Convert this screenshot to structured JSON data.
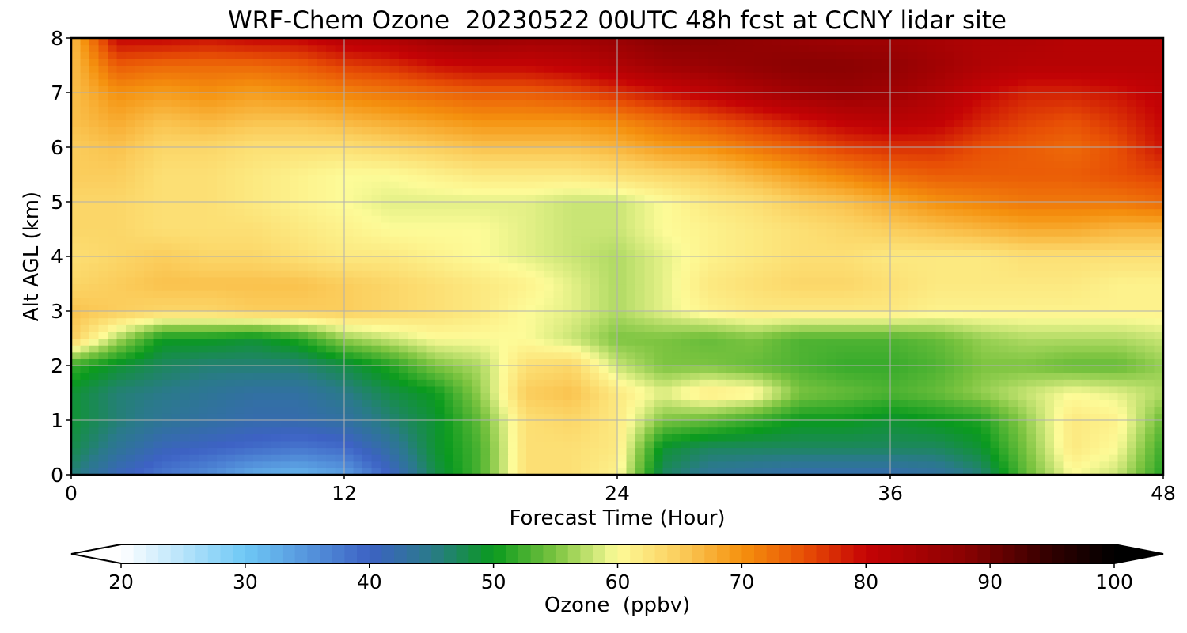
{
  "chart_data": {
    "type": "heatmap",
    "title": "WRF-Chem Ozone  20230522 00UTC 48h fcst at CCNY lidar site",
    "xlabel": "Forecast Time (Hour)",
    "ylabel": "Alt AGL (km)",
    "xlim": [
      0,
      48
    ],
    "ylim": [
      0,
      8
    ],
    "x_ticks": [
      "0",
      "12",
      "24",
      "36",
      "48"
    ],
    "y_ticks": [
      "0",
      "1",
      "2",
      "3",
      "4",
      "5",
      "6",
      "7",
      "8"
    ],
    "grid": true,
    "x": [
      0,
      2,
      4,
      6,
      8,
      10,
      12,
      14,
      16,
      18,
      20,
      22,
      24,
      26,
      28,
      30,
      32,
      34,
      36,
      38,
      40,
      42,
      44,
      46,
      48
    ],
    "y": [
      0,
      0.5,
      1,
      1.5,
      2,
      2.5,
      3,
      3.5,
      4,
      4.5,
      5,
      5.5,
      6,
      6.5,
      7,
      7.5,
      8
    ],
    "z_ozone_ppbv": [
      [
        46,
        41,
        38,
        36,
        33,
        32,
        34,
        40,
        48,
        53,
        63,
        63,
        61,
        47,
        44,
        43,
        42,
        42,
        42,
        43,
        46,
        54,
        60,
        58,
        51
      ],
      [
        48,
        44,
        41,
        40,
        39,
        38,
        39,
        43,
        49,
        53,
        63,
        63,
        62,
        49,
        47,
        47,
        47,
        47,
        47,
        47,
        49,
        55,
        62,
        60,
        52
      ],
      [
        49,
        46,
        44,
        43,
        42,
        42,
        43,
        46,
        49,
        54,
        63,
        64,
        62,
        55,
        54,
        52,
        50,
        50,
        49,
        50,
        51,
        56,
        62,
        61,
        54
      ],
      [
        49,
        46,
        45,
        44,
        43,
        43,
        45,
        48,
        50,
        56,
        65,
        66,
        62,
        59,
        62,
        61,
        55,
        54,
        53,
        54,
        56,
        58,
        60,
        59,
        57
      ],
      [
        52,
        49,
        47,
        46,
        46,
        46,
        48,
        51,
        55,
        57,
        63,
        64,
        58,
        55,
        55,
        54,
        53,
        52,
        52,
        53,
        55,
        55,
        54,
        54,
        56
      ],
      [
        65,
        57,
        50,
        50,
        49,
        51,
        56,
        58,
        60,
        60,
        60,
        58,
        55,
        55,
        54,
        55,
        53,
        53,
        53,
        54,
        56,
        57,
        57,
        57,
        58
      ],
      [
        66,
        65,
        64,
        64,
        65,
        65,
        65,
        64,
        63,
        62,
        60,
        59,
        57,
        59,
        61,
        62,
        62,
        62,
        62,
        61,
        61,
        61,
        61,
        61,
        61
      ],
      [
        64,
        65,
        66,
        66,
        66,
        66,
        65,
        64,
        63,
        62,
        61,
        59,
        57,
        59,
        62,
        63,
        64,
        64,
        63,
        62,
        62,
        62,
        62,
        61,
        61
      ],
      [
        63,
        64,
        65,
        64,
        64,
        63,
        62,
        62,
        61,
        60,
        59,
        58,
        57,
        59,
        61,
        62,
        63,
        63,
        62,
        62,
        62,
        63,
        63,
        63,
        63
      ],
      [
        64,
        64,
        63,
        63,
        63,
        62,
        61,
        60,
        60,
        60,
        59,
        58,
        58,
        60,
        61,
        62,
        63,
        64,
        65,
        66,
        67,
        68,
        68,
        67,
        67
      ],
      [
        64,
        64,
        63,
        63,
        62,
        61,
        60,
        59,
        59,
        59,
        59,
        58,
        58,
        60,
        62,
        63,
        65,
        66,
        68,
        70,
        71,
        72,
        72,
        72,
        73
      ],
      [
        65,
        65,
        63,
        63,
        62,
        61,
        60,
        60,
        61,
        62,
        62,
        62,
        63,
        64,
        65,
        67,
        69,
        71,
        73,
        74,
        74,
        74,
        74,
        75,
        76
      ],
      [
        65,
        66,
        64,
        64,
        63,
        63,
        63,
        64,
        65,
        66,
        66,
        66,
        67,
        69,
        70,
        72,
        74,
        76,
        77,
        77,
        75,
        74,
        73,
        75,
        79
      ],
      [
        66,
        68,
        66,
        67,
        66,
        66,
        67,
        68,
        69,
        70,
        70,
        70,
        71,
        73,
        75,
        77,
        79,
        81,
        82,
        81,
        78,
        76,
        75,
        77,
        80
      ],
      [
        66,
        70,
        69,
        70,
        69,
        70,
        71,
        72,
        73,
        74,
        74,
        75,
        77,
        79,
        81,
        83,
        85,
        86,
        85,
        83,
        80,
        78,
        78,
        79,
        81
      ],
      [
        66,
        74,
        73,
        73,
        73,
        74,
        76,
        77,
        79,
        80,
        80,
        81,
        83,
        85,
        86,
        87,
        88,
        88,
        87,
        85,
        83,
        82,
        82,
        82,
        82
      ],
      [
        66,
        80,
        80,
        79,
        80,
        80,
        82,
        83,
        85,
        86,
        85,
        85,
        86,
        88,
        88,
        87,
        86,
        85,
        85,
        84,
        83,
        83,
        82,
        82,
        82
      ]
    ],
    "colorbar": {
      "label": "Ozone  (ppbv)",
      "range": [
        20,
        100
      ],
      "ticks": [
        "20",
        "30",
        "40",
        "50",
        "60",
        "70",
        "80",
        "90",
        "100"
      ],
      "extend": "both",
      "stops": [
        {
          "v": 20,
          "c": "#ffffff"
        },
        {
          "v": 30,
          "c": "#6ec8f5"
        },
        {
          "v": 40,
          "c": "#3d62c4"
        },
        {
          "v": 45,
          "c": "#2a7a8a"
        },
        {
          "v": 50,
          "c": "#0a9a1e"
        },
        {
          "v": 55,
          "c": "#7cc440"
        },
        {
          "v": 60,
          "c": "#fdfb98"
        },
        {
          "v": 65,
          "c": "#fbcd5c"
        },
        {
          "v": 70,
          "c": "#f5910e"
        },
        {
          "v": 75,
          "c": "#e85005"
        },
        {
          "v": 80,
          "c": "#c50305"
        },
        {
          "v": 88,
          "c": "#8a0202"
        },
        {
          "v": 95,
          "c": "#300000"
        },
        {
          "v": 100,
          "c": "#000000"
        }
      ]
    }
  }
}
